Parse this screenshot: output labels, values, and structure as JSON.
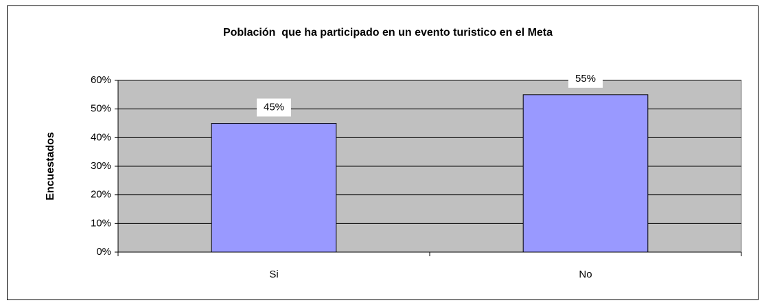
{
  "chart_data": {
    "type": "bar",
    "title": "Población  que ha participado en un evento turistico en el Meta",
    "ylabel": "Encuestados",
    "categories": [
      "Si",
      "No"
    ],
    "values": [
      45,
      55
    ],
    "value_labels": [
      "45%",
      "55%"
    ],
    "color": "#9999ff",
    "ylim": [
      0,
      60
    ],
    "yticks": [
      {
        "value": 0,
        "label": "0%"
      },
      {
        "value": 10,
        "label": "10%"
      },
      {
        "value": 20,
        "label": "20%"
      },
      {
        "value": 30,
        "label": "30%"
      },
      {
        "value": 40,
        "label": "40%"
      },
      {
        "value": 50,
        "label": "50%"
      },
      {
        "value": 60,
        "label": "60%"
      }
    ],
    "grid": true
  }
}
